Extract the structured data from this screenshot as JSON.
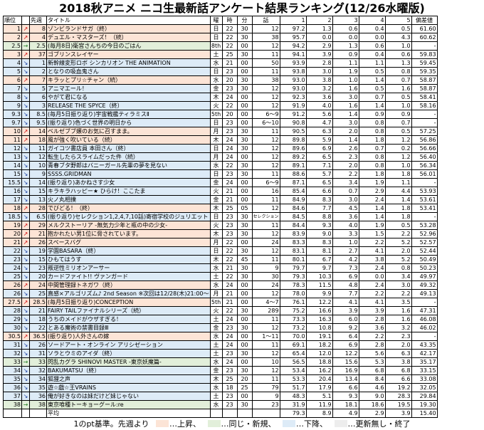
{
  "title": "2018秋アニメ ニコ生最新話アンケート結果ランキング(12/26水曜版)",
  "headers": {
    "rank": "順位",
    "prev": "先週",
    "title": "タイトル",
    "day": "曜",
    "hour": "時",
    "min": "分",
    "ep": "話",
    "s1": "1",
    "s2": "2",
    "s3": "3",
    "s4": "4",
    "s5": "5",
    "dev": "偏差値"
  },
  "colors": {
    "up": "#fce4d6",
    "same": "#e2efda",
    "down": "#ddebf7",
    "none": "#ededed"
  },
  "rows": [
    {
      "rank": "1",
      "mv": "↗",
      "prev": "8",
      "title": "ゾンビランドサガ（終）",
      "day": "日",
      "hour": "22",
      "min": "30",
      "ep": "12",
      "s1": "97.2",
      "s2": "1.3",
      "s3": "0.6",
      "s4": "0.4",
      "s5": "0.5",
      "dev": "61.60",
      "st": "up"
    },
    {
      "rank": "2",
      "mv": "↗",
      "prev": "4",
      "title": "デュエル・マスターズ！（続）",
      "day": "日",
      "hour": "22",
      "min": "30",
      "ep": "38",
      "s1": "95.7",
      "s2": "0.0",
      "s3": "0.0",
      "s4": "0.0",
      "s5": "4.3",
      "dev": "60.62",
      "st": "up"
    },
    {
      "rank": "2.5",
      "mv": "→",
      "prev": "2.5",
      "title": "(毎月8日)衛宮さんちの今日のごはん",
      "day": "8th",
      "hour": "22",
      "min": "00",
      "ep": "12",
      "s1": "94.2",
      "s2": "2.9",
      "s3": "1.3",
      "s4": "0.6",
      "s5": "1.0",
      "dev": "-",
      "st": "eq"
    },
    {
      "rank": "3",
      "mv": "↗",
      "prev": "37",
      "title": "ゴブリンスレイヤー",
      "day": "土",
      "hour": "25",
      "min": "30",
      "ep": "11",
      "s1": "94.1",
      "s2": "3.9",
      "s3": "0.9",
      "s4": "0.4",
      "s5": "0.6",
      "dev": "59.83",
      "st": "up"
    },
    {
      "rank": "4",
      "mv": "↘",
      "prev": "1",
      "title": "新幹線変形ロボ シンカリオン THE ANIMATION",
      "day": "水",
      "hour": "21",
      "min": "00",
      "ep": "50",
      "s1": "93.9",
      "s2": "2.8",
      "s3": "1.1",
      "s4": "1.1",
      "s5": "1.3",
      "dev": "59.45",
      "st": "dn"
    },
    {
      "rank": "5",
      "mv": "↘",
      "prev": "2",
      "title": "となりの吸血鬼さん",
      "day": "日",
      "hour": "23",
      "min": "00",
      "ep": "11",
      "s1": "93.8",
      "s2": "3.0",
      "s3": "1.9",
      "s4": "0.5",
      "s5": "0.8",
      "dev": "59.35",
      "st": "dn"
    },
    {
      "rank": "6",
      "mv": "↗",
      "prev": "7",
      "title": "キラッとプリ☆チャン（続）",
      "day": "水",
      "hour": "20",
      "min": "30",
      "ep": "38",
      "s1": "93.0",
      "s2": "3.8",
      "s3": "1.0",
      "s4": "1.4",
      "s5": "0.7",
      "dev": "58.87",
      "st": "up"
    },
    {
      "rank": "7",
      "mv": "↘",
      "prev": "5",
      "title": "アニマエール！",
      "day": "金",
      "hour": "23",
      "min": "30",
      "ep": "12",
      "s1": "93.0",
      "s2": "3.2",
      "s3": "1.6",
      "s4": "0.5",
      "s5": "1.6",
      "dev": "58.87",
      "st": "dn"
    },
    {
      "rank": "8",
      "mv": "↘",
      "prev": "6",
      "title": "やがて君になる",
      "day": "木",
      "hour": "24",
      "min": "00",
      "ep": "12",
      "s1": "92.3",
      "s2": "3.6",
      "s3": "3.0",
      "s4": "0.7",
      "s5": "0.5",
      "dev": "58.41",
      "st": "dn"
    },
    {
      "rank": "9",
      "mv": "↘",
      "prev": "3",
      "title": "RELEASE THE SPYCE（終）",
      "day": "火",
      "hour": "22",
      "min": "00",
      "ep": "12",
      "s1": "91.9",
      "s2": "4.0",
      "s3": "1.6",
      "s4": "1.4",
      "s5": "1.0",
      "dev": "58.16",
      "st": "dn"
    },
    {
      "rank": "9.3",
      "mv": "↘",
      "prev": "8.5",
      "title": "(毎月5日振り返り)宇宙戦艦ティラミスⅡ",
      "day": "5th",
      "hour": "20",
      "min": "00",
      "ep": "6〜9",
      "s1": "91.2",
      "s2": "5.6",
      "s3": "1.4",
      "s4": "0.9",
      "s5": "0.9",
      "dev": "-",
      "st": "dn"
    },
    {
      "rank": "9.7",
      "mv": "↘",
      "prev": "9.5",
      "title": "(振り返り)色づく世界の明日から",
      "day": "日",
      "hour": "23",
      "min": "00",
      "ep": "6〜10",
      "s1": "90.8",
      "s2": "4.7",
      "s3": "3.0",
      "s4": "0.8",
      "s5": "0.7",
      "dev": "-",
      "st": "dn"
    },
    {
      "rank": "10",
      "mv": "↗",
      "prev": "14",
      "title": "ベルゼブブ嬢のお気に召すまま。",
      "day": "月",
      "hour": "23",
      "min": "30",
      "ep": "11",
      "s1": "90.5",
      "s2": "6.3",
      "s3": "2.0",
      "s4": "0.8",
      "s5": "0.5",
      "dev": "57.25",
      "st": "up"
    },
    {
      "rank": "11",
      "mv": "↗",
      "prev": "18",
      "title": "風が強く吹いている（続）",
      "day": "木",
      "hour": "24",
      "min": "30",
      "ep": "12",
      "s1": "89.8",
      "s2": "5.9",
      "s3": "1.4",
      "s4": "1.8",
      "s5": "1.2",
      "dev": "56.86",
      "st": "up"
    },
    {
      "rank": "12",
      "mv": "↘",
      "prev": "11",
      "title": "ガイコツ書店員 本田さん（終）",
      "day": "日",
      "hour": "24",
      "min": "30",
      "ep": "12",
      "s1": "89.6",
      "s2": "6.9",
      "s3": "2.6",
      "s4": "0.7",
      "s5": "0.2",
      "dev": "56.66",
      "st": "dn"
    },
    {
      "rank": "13",
      "mv": "↘",
      "prev": "12",
      "title": "転生したらスライムだった件（続）",
      "day": "月",
      "hour": "24",
      "min": "00",
      "ep": "12",
      "s1": "89.2",
      "s2": "6.5",
      "s3": "2.3",
      "s4": "0.8",
      "s5": "1.2",
      "dev": "56.40",
      "st": "dn"
    },
    {
      "rank": "14",
      "mv": "↘",
      "prev": "10",
      "title": "青春ブタ野郎はバニーガール先輩の夢を見ない",
      "day": "水",
      "hour": "22",
      "min": "30",
      "ep": "12",
      "s1": "89.1",
      "s2": "7.1",
      "s3": "2.0",
      "s4": "0.8",
      "s5": "1.0",
      "dev": "56.34",
      "st": "dn"
    },
    {
      "rank": "15",
      "mv": "↘",
      "prev": "9",
      "title": "SSSS.GRIDMAN",
      "day": "日",
      "hour": "23",
      "min": "30",
      "ep": "11",
      "s1": "88.6",
      "s2": "5.7",
      "s3": "2.2",
      "s4": "1.8",
      "s5": "1.8",
      "dev": "56.01",
      "st": "dn"
    },
    {
      "rank": "15.5",
      "mv": "↘",
      "prev": "14",
      "title": "(振り返り)あかねさす少女",
      "day": "金",
      "hour": "24",
      "min": "00",
      "ep": "6〜9",
      "s1": "87.1",
      "s2": "6.5",
      "s3": "3.4",
      "s4": "1.9",
      "s5": "1.1",
      "dev": "-",
      "st": "dn"
    },
    {
      "rank": "16",
      "mv": "↘",
      "prev": "15",
      "title": "キラキラハッピー★ ひらけ！ここたま",
      "day": "火",
      "hour": "21",
      "min": "00",
      "ep": "16",
      "s1": "85.4",
      "s2": "6.6",
      "s3": "0.7",
      "s4": "2.9",
      "s5": "4.4",
      "dev": "53.93",
      "st": "dn"
    },
    {
      "rank": "17",
      "mv": "↘",
      "prev": "13",
      "title": "火ノ丸相撲",
      "day": "金",
      "hour": "21",
      "min": "00",
      "ep": "11",
      "s1": "84.9",
      "s2": "8.3",
      "s3": "3.0",
      "s4": "2.4",
      "s5": "1.4",
      "dev": "53.61",
      "st": "dn"
    },
    {
      "rank": "18",
      "mv": "↗",
      "prev": "28",
      "title": "でびどる！（終）",
      "day": "木",
      "hour": "25",
      "min": "05",
      "ep": "12",
      "s1": "84.6",
      "s2": "7.7",
      "s3": "4.5",
      "s4": "1.4",
      "s5": "1.8",
      "dev": "53.41",
      "st": "up"
    },
    {
      "rank": "18.5",
      "mv": "↘",
      "prev": "6.5",
      "title": "(振り返り)セレクション1,2,4,7,10話)寄宿学校のジュリエット",
      "day": "日",
      "hour": "23",
      "min": "30",
      "ep": "セレクション",
      "s1": "84.5",
      "s2": "8.8",
      "s3": "3.6",
      "s4": "1.4",
      "s5": "1.8",
      "dev": "-",
      "st": "dn"
    },
    {
      "rank": "19",
      "mv": "↗",
      "prev": "29",
      "title": "メルクストーリア -無気力少年と瓶の中の少女-",
      "day": "火",
      "hour": "23",
      "min": "30",
      "ep": "11",
      "s1": "84.4",
      "s2": "9.3",
      "s3": "4.0",
      "s4": "1.9",
      "s5": "0.5",
      "dev": "53.28",
      "st": "up"
    },
    {
      "rank": "20",
      "mv": "↗",
      "prev": "21",
      "title": "抱かれたい男1位に脅されています。",
      "day": "木",
      "hour": "23",
      "min": "30",
      "ep": "12",
      "s1": "83.9",
      "s2": "9.0",
      "s3": "3.3",
      "s4": "1.5",
      "s5": "2.2",
      "dev": "52.96",
      "st": "up"
    },
    {
      "rank": "21",
      "mv": "↗",
      "prev": "26",
      "title": "スペースバグ",
      "day": "月",
      "hour": "22",
      "min": "00",
      "ep": "24",
      "s1": "83.3",
      "s2": "8.3",
      "s3": "1.0",
      "s4": "2.2",
      "s5": "5.2",
      "dev": "52.57",
      "st": "up"
    },
    {
      "rank": "22",
      "mv": "↘",
      "prev": "19",
      "title": "学園BASARA（終）",
      "day": "日",
      "hour": "22",
      "min": "30",
      "ep": "12",
      "s1": "83.1",
      "s2": "8.1",
      "s3": "2.7",
      "s4": "4.1",
      "s5": "2.0",
      "dev": "52.44",
      "st": "dn"
    },
    {
      "rank": "23",
      "mv": "↘",
      "prev": "15",
      "title": "ひもてはうす",
      "day": "木",
      "hour": "22",
      "min": "45",
      "ep": "11",
      "s1": "80.1",
      "s2": "6.7",
      "s3": "4.2",
      "s4": "3.8",
      "s5": "5.2",
      "dev": "50.49",
      "st": "dn"
    },
    {
      "rank": "24",
      "mv": "↘",
      "prev": "23",
      "title": "叛逆性ミリオンアーサー",
      "day": "水",
      "hour": "21",
      "min": "30",
      "ep": "9",
      "s1": "79.7",
      "s2": "9.7",
      "s3": "7.3",
      "s4": "2.4",
      "s5": "0.8",
      "dev": "50.23",
      "st": "dn"
    },
    {
      "rank": "25",
      "mv": "↘",
      "prev": "20",
      "title": "カードファイト!! ヴァンガード",
      "day": "土",
      "hour": "22",
      "min": "30",
      "ep": "30",
      "s1": "79.3",
      "s2": "10.3",
      "s3": "6.9",
      "s4": "0.0",
      "s5": "3.4",
      "dev": "49.97",
      "st": "dn"
    },
    {
      "rank": "26",
      "mv": "↗",
      "prev": "24",
      "title": "中間管理録トネガワ（終）",
      "day": "水",
      "hour": "24",
      "min": "00",
      "ep": "24",
      "s1": "78.3",
      "s2": "11.5",
      "s3": "4.8",
      "s4": "2.4",
      "s5": "3.0",
      "dev": "49.32",
      "st": "up"
    },
    {
      "rank": "26",
      "mv": "↘",
      "prev": "25",
      "title": "直感×アルゴリズム♪ 2nd Season ※次回は12/28(木)21:00〜",
      "day": "月",
      "hour": "21",
      "min": "00",
      "ep": "12",
      "s1": "78.0",
      "s2": "9.9",
      "s3": "7.7",
      "s4": "2.2",
      "s5": "2.2",
      "dev": "49.13",
      "st": "dn"
    },
    {
      "rank": "27.5",
      "mv": "↗",
      "prev": "28.5",
      "title": "(毎月5日振り返り)CONCEPTION",
      "day": "5th",
      "hour": "21",
      "min": "00",
      "ep": "4〜7",
      "s1": "76.1",
      "s2": "12.2",
      "s3": "4.1",
      "s4": "4.1",
      "s5": "3.5",
      "dev": "-",
      "st": "up"
    },
    {
      "rank": "28",
      "mv": "↘",
      "prev": "21",
      "title": "FAIRY TAILファイナルシリーズ（続）",
      "day": "火",
      "hour": "22",
      "min": "30",
      "ep": "289",
      "s1": "75.2",
      "s2": "16.6",
      "s3": "3.9",
      "s4": "3.9",
      "s5": "1.6",
      "dev": "47.31",
      "st": "dn"
    },
    {
      "rank": "29",
      "mv": "↘",
      "prev": "18",
      "title": "うちのメイドがウザすぎる！",
      "day": "土",
      "hour": "24",
      "min": "00",
      "ep": "11",
      "s1": "73.3",
      "s2": "16.3",
      "s3": "6.0",
      "s4": "2.8",
      "s5": "1.6",
      "dev": "46.08",
      "st": "dn"
    },
    {
      "rank": "30",
      "mv": "↘",
      "prev": "22",
      "title": "とある魔術の禁書目録Ⅲ",
      "day": "金",
      "hour": "23",
      "min": "30",
      "ep": "12",
      "s1": "73.2",
      "s2": "10.8",
      "s3": "9.2",
      "s4": "3.6",
      "s5": "3.2",
      "dev": "46.02",
      "st": "dn"
    },
    {
      "rank": "30.5",
      "mv": "↗",
      "prev": "36.5",
      "title": "(振り返り)人外さんの嫁",
      "day": "水",
      "hour": "24",
      "min": "00",
      "ep": "1〜11",
      "s1": "70.0",
      "s2": "19.1",
      "s3": "6.4",
      "s4": "2.2",
      "s5": "2.3",
      "dev": "-",
      "st": "up"
    },
    {
      "rank": "31",
      "mv": "↘",
      "prev": "26",
      "title": "ソードアート・オンライン アリシゼーション",
      "day": "土",
      "hour": "24",
      "min": "00",
      "ep": "11",
      "s1": "69.1",
      "s2": "18.2",
      "s3": "6.9",
      "s4": "2.8",
      "s5": "2.0",
      "dev": "43.35",
      "st": "dn"
    },
    {
      "rank": "32",
      "mv": "↘",
      "prev": "31",
      "title": "ソラとウミのアイダ（終）",
      "day": "土",
      "hour": "23",
      "min": "30",
      "ep": "12",
      "s1": "65.4",
      "s2": "12.0",
      "s3": "12.2",
      "s4": "5.6",
      "s5": "6.3",
      "dev": "42.17",
      "st": "dn"
    },
    {
      "rank": "33",
      "mv": "→",
      "prev": "33",
      "title": "閃乱カグラ SHINOVI MASTER -東京妖魔篇-",
      "day": "水",
      "hour": "24",
      "min": "00",
      "ep": "10",
      "s1": "56.5",
      "s2": "18.8",
      "s3": "15.6",
      "s4": "5.3",
      "s5": "3.8",
      "dev": "35.17",
      "st": "eq"
    },
    {
      "rank": "34",
      "mv": "↘",
      "prev": "32",
      "title": "BAKUMATSU（終）",
      "day": "金",
      "hour": "23",
      "min": "30",
      "ep": "12",
      "s1": "53.4",
      "s2": "16.2",
      "s3": "16.9",
      "s4": "6.8",
      "s5": "6.8",
      "dev": "33.15",
      "st": "dn"
    },
    {
      "rank": "35",
      "mv": "↘",
      "prev": "34",
      "title": "狐狸之声",
      "day": "木",
      "hour": "25",
      "min": "20",
      "ep": "11",
      "s1": "53.3",
      "s2": "20.4",
      "s3": "13.4",
      "s4": "8.4",
      "s5": "6.6",
      "dev": "33.08",
      "st": "dn"
    },
    {
      "rank": "36",
      "mv": "↘",
      "prev": "35",
      "title": "遊☆戯☆王VRAINS",
      "day": "水",
      "hour": "18",
      "min": "25",
      "ep": "79",
      "s1": "51.7",
      "s2": "17.9",
      "s3": "6.6",
      "s4": "4.6",
      "s5": "19.2",
      "dev": "32.05",
      "st": "dn"
    },
    {
      "rank": "37",
      "mv": "↘",
      "prev": "36",
      "title": "俺が好きなのは妹だけど妹じゃない",
      "day": "土",
      "hour": "23",
      "min": "00",
      "ep": "9",
      "s1": "48.3",
      "s2": "5.1",
      "s3": "9.3",
      "s4": "9.0",
      "s5": "28.3",
      "dev": "29.84",
      "st": "dn"
    },
    {
      "rank": "38",
      "mv": "→",
      "prev": "38",
      "title": "東京喰種トーキョーグール:re",
      "day": "水",
      "hour": "23",
      "min": "30",
      "ep": "23",
      "s1": "31.9",
      "s2": "11.9",
      "s3": "18.1",
      "s4": "18.6",
      "s5": "19.5",
      "dev": "19.30",
      "st": "eq"
    }
  ],
  "avg": {
    "title": "平均",
    "s1": "79.3",
    "s2": "8.9",
    "s3": "4.9",
    "s4": "2.9",
    "s5": "3.9",
    "dev": "15.40"
  },
  "legend": {
    "prefix": "1のpt基準。先週より",
    "up": "…上昇、",
    "same": "…同じ・新規、",
    "down": "…下降、",
    "none": "…更新無し・終了"
  }
}
